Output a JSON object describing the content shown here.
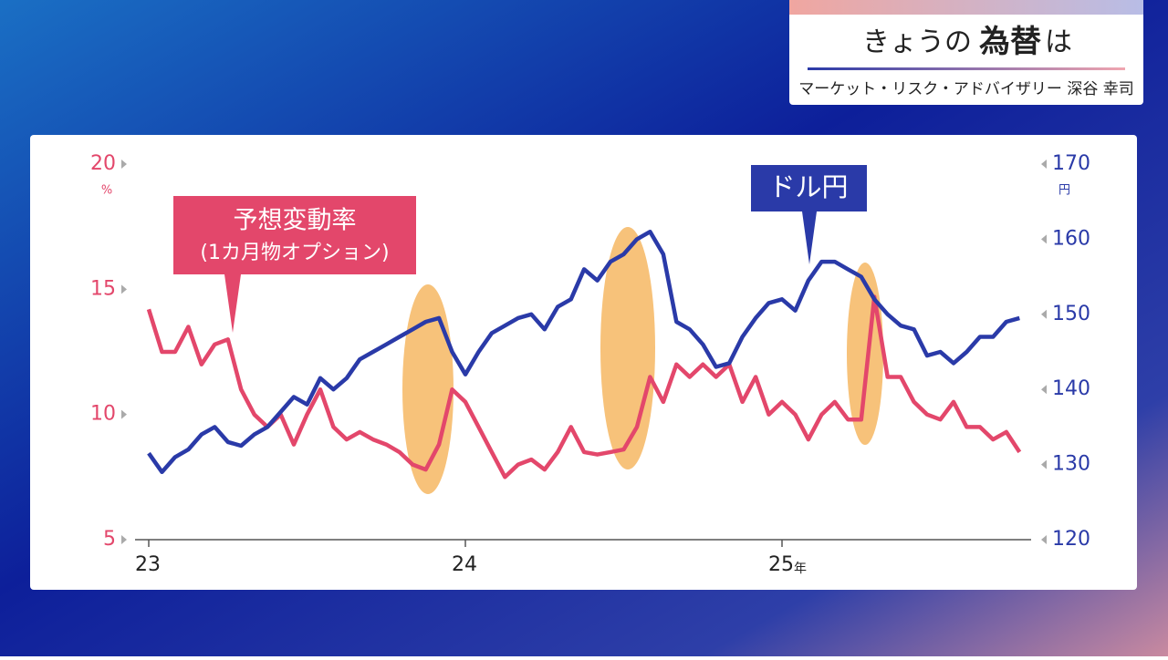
{
  "header": {
    "title_prefix": "きょうの",
    "title_emphasis": "為替",
    "title_suffix": "は",
    "subtitle": "マーケット・リスク・アドバイザリー 深谷 幸司"
  },
  "chart_data": {
    "type": "line",
    "categories": [
      "23",
      null,
      null,
      null,
      null,
      null,
      null,
      null,
      null,
      null,
      null,
      null,
      null,
      null,
      null,
      null,
      null,
      null,
      null,
      null,
      null,
      null,
      null,
      null,
      "24",
      null,
      null,
      null,
      null,
      null,
      null,
      null,
      null,
      null,
      null,
      null,
      null,
      null,
      null,
      null,
      null,
      null,
      null,
      null,
      null,
      null,
      null,
      null,
      "25",
      null,
      null,
      null,
      null,
      null,
      null,
      null,
      null,
      null,
      null,
      null,
      null,
      null,
      null,
      null,
      null,
      null,
      null
    ],
    "x_unit": "年",
    "series": [
      {
        "name": "予想変動率",
        "annotation": "(1カ月物オプション)",
        "color": "#e3476b",
        "axis": "y",
        "values": [
          14.2,
          12.5,
          12.5,
          13.5,
          12.0,
          12.8,
          13.0,
          11.0,
          10.0,
          9.5,
          10.0,
          8.8,
          10.0,
          11.0,
          9.5,
          9.0,
          9.3,
          9.0,
          8.8,
          8.5,
          8.0,
          7.8,
          8.8,
          11.0,
          10.5,
          9.5,
          8.5,
          7.5,
          8.0,
          8.2,
          7.8,
          8.5,
          9.5,
          8.5,
          8.4,
          8.5,
          8.6,
          9.5,
          11.5,
          10.5,
          12.0,
          11.5,
          12.0,
          11.5,
          12.0,
          10.5,
          11.5,
          10.0,
          10.5,
          10.0,
          9.0,
          10.0,
          10.5,
          9.8,
          9.8,
          14.7,
          11.5,
          11.5,
          10.5,
          10.0,
          9.8,
          10.5,
          9.5,
          9.5,
          9.0,
          9.3,
          8.5
        ]
      },
      {
        "name": "ドル円",
        "color": "#2a3aa8",
        "axis": "y2",
        "values": [
          131.5,
          129,
          131,
          132,
          134,
          135,
          133,
          132.5,
          134,
          135,
          137,
          139,
          138,
          141.5,
          140,
          141.5,
          144,
          145,
          146,
          147,
          148,
          149,
          149.5,
          145,
          142,
          145,
          147.5,
          148.5,
          149.5,
          150,
          148,
          151,
          152,
          156,
          154.5,
          157,
          158,
          160,
          161,
          158,
          149,
          148,
          146,
          143,
          143.5,
          147,
          149.5,
          151.5,
          152,
          150.5,
          154.5,
          157,
          157,
          156,
          155,
          152,
          150,
          148.5,
          148,
          144.5,
          145,
          143.5,
          145,
          147,
          147,
          149,
          149.5
        ]
      }
    ],
    "ylim": [
      5,
      20
    ],
    "yticks": [
      5,
      10,
      15,
      20
    ],
    "y_unit": "%",
    "y2lim": [
      120,
      170
    ],
    "y2ticks": [
      120,
      130,
      140,
      150,
      160,
      170
    ],
    "y2_unit": "円"
  }
}
